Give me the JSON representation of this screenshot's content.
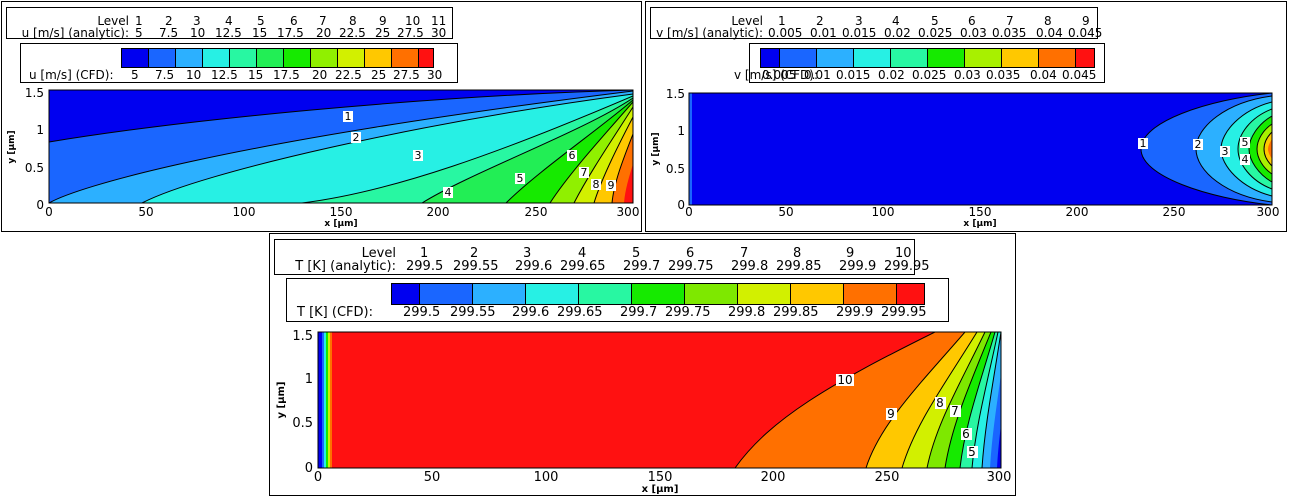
{
  "chart_data": [
    {
      "type": "heatmap",
      "subtype": "filled-contour",
      "xlabel": "x [μm]",
      "ylabel": "y [μm]",
      "xlim": [
        0,
        300
      ],
      "ylim": [
        0,
        1.5
      ],
      "xticks": [
        "0",
        "50",
        "100",
        "150",
        "200",
        "250",
        "300"
      ],
      "yticks": [
        "0",
        "0.5",
        "1",
        "1.5"
      ],
      "legend_analytic": {
        "level_label": "Level",
        "levels": [
          "1",
          "2",
          "3",
          "4",
          "5",
          "6",
          "7",
          "8",
          "9",
          "10",
          "11"
        ],
        "value_label": "u [m/s] (analytic):",
        "values": [
          "5",
          "7.5",
          "10",
          "12.5",
          "15",
          "17.5",
          "20",
          "22.5",
          "25",
          "27.5",
          "30"
        ]
      },
      "legend_cfd": {
        "value_label": "u [m/s] (CFD):",
        "values": [
          "5",
          "7.5",
          "10",
          "12.5",
          "15",
          "17.5",
          "20",
          "22.5",
          "25",
          "27.5",
          "30"
        ],
        "colors": [
          "#0000f0",
          "#1a66ff",
          "#2cb0ff",
          "#27f0e4",
          "#28f7a2",
          "#22ee55",
          "#16ea00",
          "#90f000",
          "#d2f000",
          "#ffc800",
          "#ff7000",
          "#ff1111"
        ]
      },
      "contour_labels": [
        {
          "text": "1",
          "x": 152,
          "y": 1.19
        },
        {
          "text": "2",
          "x": 157,
          "y": 0.9
        },
        {
          "text": "3",
          "x": 190,
          "y": 0.68
        },
        {
          "text": "4",
          "x": 207,
          "y": 0.13
        },
        {
          "text": "5",
          "x": 245,
          "y": 0.43
        },
        {
          "text": "6",
          "x": 272,
          "y": 0.66
        },
        {
          "text": "7",
          "x": 277,
          "y": 0.46
        },
        {
          "text": "8",
          "x": 283,
          "y": 0.24
        },
        {
          "text": "9",
          "x": 291,
          "y": 0.23
        }
      ]
    },
    {
      "type": "heatmap",
      "subtype": "filled-contour",
      "xlabel": "x [μm]",
      "ylabel": "y [μm]",
      "xlim": [
        0,
        300
      ],
      "ylim": [
        0,
        1.5
      ],
      "xticks": [
        "0",
        "50",
        "100",
        "150",
        "200",
        "250",
        "300"
      ],
      "yticks": [
        "0",
        "0.5",
        "1",
        "1.5"
      ],
      "legend_analytic": {
        "level_label": "Level",
        "levels": [
          "1",
          "2",
          "3",
          "4",
          "5",
          "6",
          "7",
          "8",
          "9"
        ],
        "value_label": "v [m/s] (analytic):",
        "values": [
          "0.005",
          "0.01",
          "0.015",
          "0.02",
          "0.025",
          "0.03",
          "0.035",
          "0.04",
          "0.045"
        ]
      },
      "legend_cfd": {
        "value_label": "v [m/s] (CFD):",
        "values": [
          "0.005",
          "0.01",
          "0.015",
          "0.02",
          "0.025",
          "0.03",
          "0.035",
          "0.04",
          "0.045"
        ],
        "colors": [
          "#0000f0",
          "#1a66ff",
          "#2cb0ff",
          "#27f0e4",
          "#28f7a2",
          "#16ea00",
          "#a8f000",
          "#ffc800",
          "#ff7000",
          "#ff1111"
        ]
      },
      "contour_labels": [
        {
          "text": "1",
          "x": 236,
          "y": 0.82
        },
        {
          "text": "2",
          "x": 264,
          "y": 0.8
        },
        {
          "text": "3",
          "x": 276,
          "y": 0.7
        },
        {
          "text": "4",
          "x": 288,
          "y": 0.58
        },
        {
          "text": "5",
          "x": 288,
          "y": 0.84
        }
      ]
    },
    {
      "type": "heatmap",
      "subtype": "filled-contour",
      "xlabel": "x [μm]",
      "ylabel": "y [μm]",
      "xlim": [
        0,
        300
      ],
      "ylim": [
        0,
        1.5
      ],
      "xticks": [
        "0",
        "50",
        "100",
        "150",
        "200",
        "250",
        "300"
      ],
      "yticks": [
        "0",
        "0.5",
        "1",
        "1.5"
      ],
      "legend_analytic": {
        "level_label": "Level",
        "levels": [
          "1",
          "2",
          "3",
          "4",
          "5",
          "6",
          "7",
          "8",
          "9",
          "10"
        ],
        "value_label": "T [K] (analytic):",
        "values": [
          "299.5",
          "299.55",
          "299.6",
          "299.65",
          "299.7",
          "299.75",
          "299.8",
          "299.85",
          "299.9",
          "299.95"
        ]
      },
      "legend_cfd": {
        "value_label": "T [K] (CFD):",
        "values": [
          "299.5",
          "299.55",
          "299.6",
          "299.65",
          "299.7",
          "299.75",
          "299.8",
          "299.85",
          "299.9",
          "299.95"
        ],
        "colors": [
          "#0000f0",
          "#1a66ff",
          "#2cb0ff",
          "#27f0e4",
          "#28f7a2",
          "#16ea00",
          "#7ee800",
          "#d2f000",
          "#ffc800",
          "#ff7000",
          "#ff1111"
        ]
      },
      "contour_labels": [
        {
          "text": "10",
          "x": 231,
          "y": 1.08
        },
        {
          "text": "9",
          "x": 250,
          "y": 0.72
        },
        {
          "text": "8",
          "x": 268,
          "y": 0.84
        },
        {
          "text": "7",
          "x": 275,
          "y": 0.76
        },
        {
          "text": "6",
          "x": 281,
          "y": 0.4
        },
        {
          "text": "5",
          "x": 284,
          "y": 0.18
        }
      ]
    }
  ]
}
